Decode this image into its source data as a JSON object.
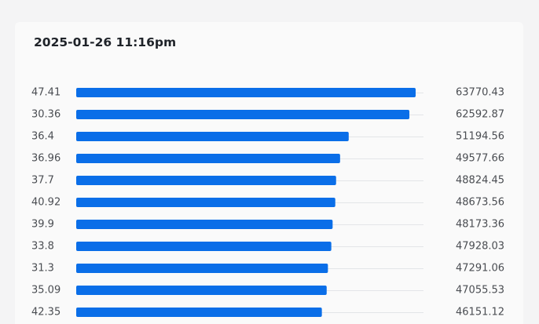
{
  "card": {
    "title": "2025-01-26 11:16pm"
  },
  "chart_data": {
    "type": "bar",
    "orientation": "horizontal",
    "categories": [
      "47.41",
      "30.36",
      "36.4",
      "36.96",
      "37.7",
      "40.92",
      "39.9",
      "33.8",
      "31.3",
      "35.09",
      "42.35"
    ],
    "values": [
      63770.43,
      62592.87,
      51194.56,
      49577.66,
      48824.45,
      48673.56,
      48173.36,
      47928.03,
      47291.06,
      47055.53,
      46151.12
    ],
    "value_labels": [
      "63770.43",
      "62592.87",
      "51194.56",
      "49577.66",
      "48824.45",
      "48673.56",
      "48173.36",
      "47928.03",
      "47291.06",
      "47055.53",
      "46151.12"
    ],
    "xlim": [
      0,
      63770.43
    ],
    "title": "",
    "xlabel": "",
    "ylabel": "",
    "grid": true,
    "legend": "none",
    "bar_color": "#0a6ee8",
    "grid_color": "#e3e5e8"
  }
}
